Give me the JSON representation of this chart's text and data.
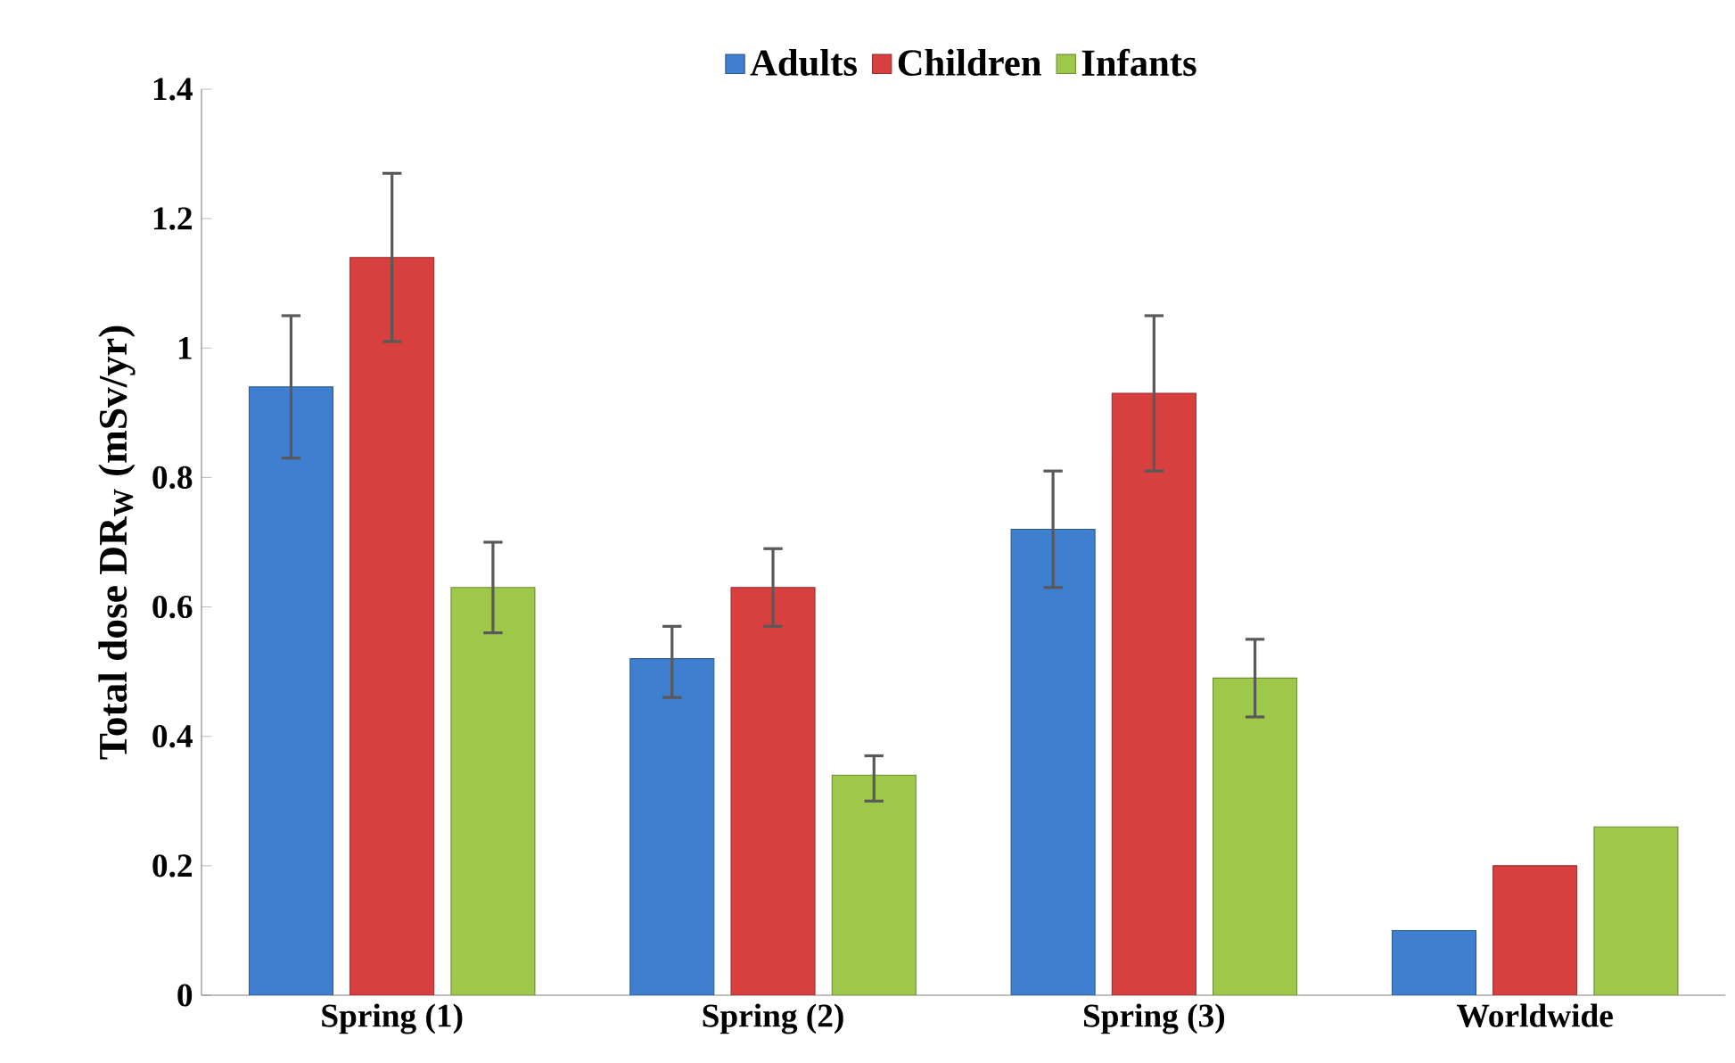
{
  "chart_data": {
    "type": "bar",
    "ylabel": "Total dose DR$_{W}$ (mSv/yr)",
    "categories": [
      "Spring (1)",
      "Spring (2)",
      "Spring (3)",
      "Worldwide"
    ],
    "series": [
      {
        "name": "Adults",
        "color": "#3f7fcf",
        "values": [
          0.94,
          0.52,
          0.72,
          0.1
        ],
        "errors": [
          [
            0.83,
            1.05
          ],
          [
            0.46,
            0.57
          ],
          [
            0.63,
            0.81
          ],
          null
        ]
      },
      {
        "name": "Children",
        "color": "#d84040",
        "values": [
          1.14,
          0.63,
          0.93,
          0.2
        ],
        "errors": [
          [
            1.01,
            1.27
          ],
          [
            0.57,
            0.69
          ],
          [
            0.81,
            1.05
          ],
          null
        ]
      },
      {
        "name": "Infants",
        "color": "#9dc84a",
        "values": [
          0.63,
          0.34,
          0.49,
          0.26
        ],
        "errors": [
          [
            0.56,
            0.7
          ],
          [
            0.3,
            0.37
          ],
          [
            0.43,
            0.55
          ],
          null
        ]
      }
    ],
    "ylim": [
      0,
      1.4
    ],
    "yticks": [
      0,
      0.2,
      0.4,
      0.6,
      0.8,
      1,
      1.2,
      1.4
    ],
    "grid": false,
    "legend": "top"
  }
}
